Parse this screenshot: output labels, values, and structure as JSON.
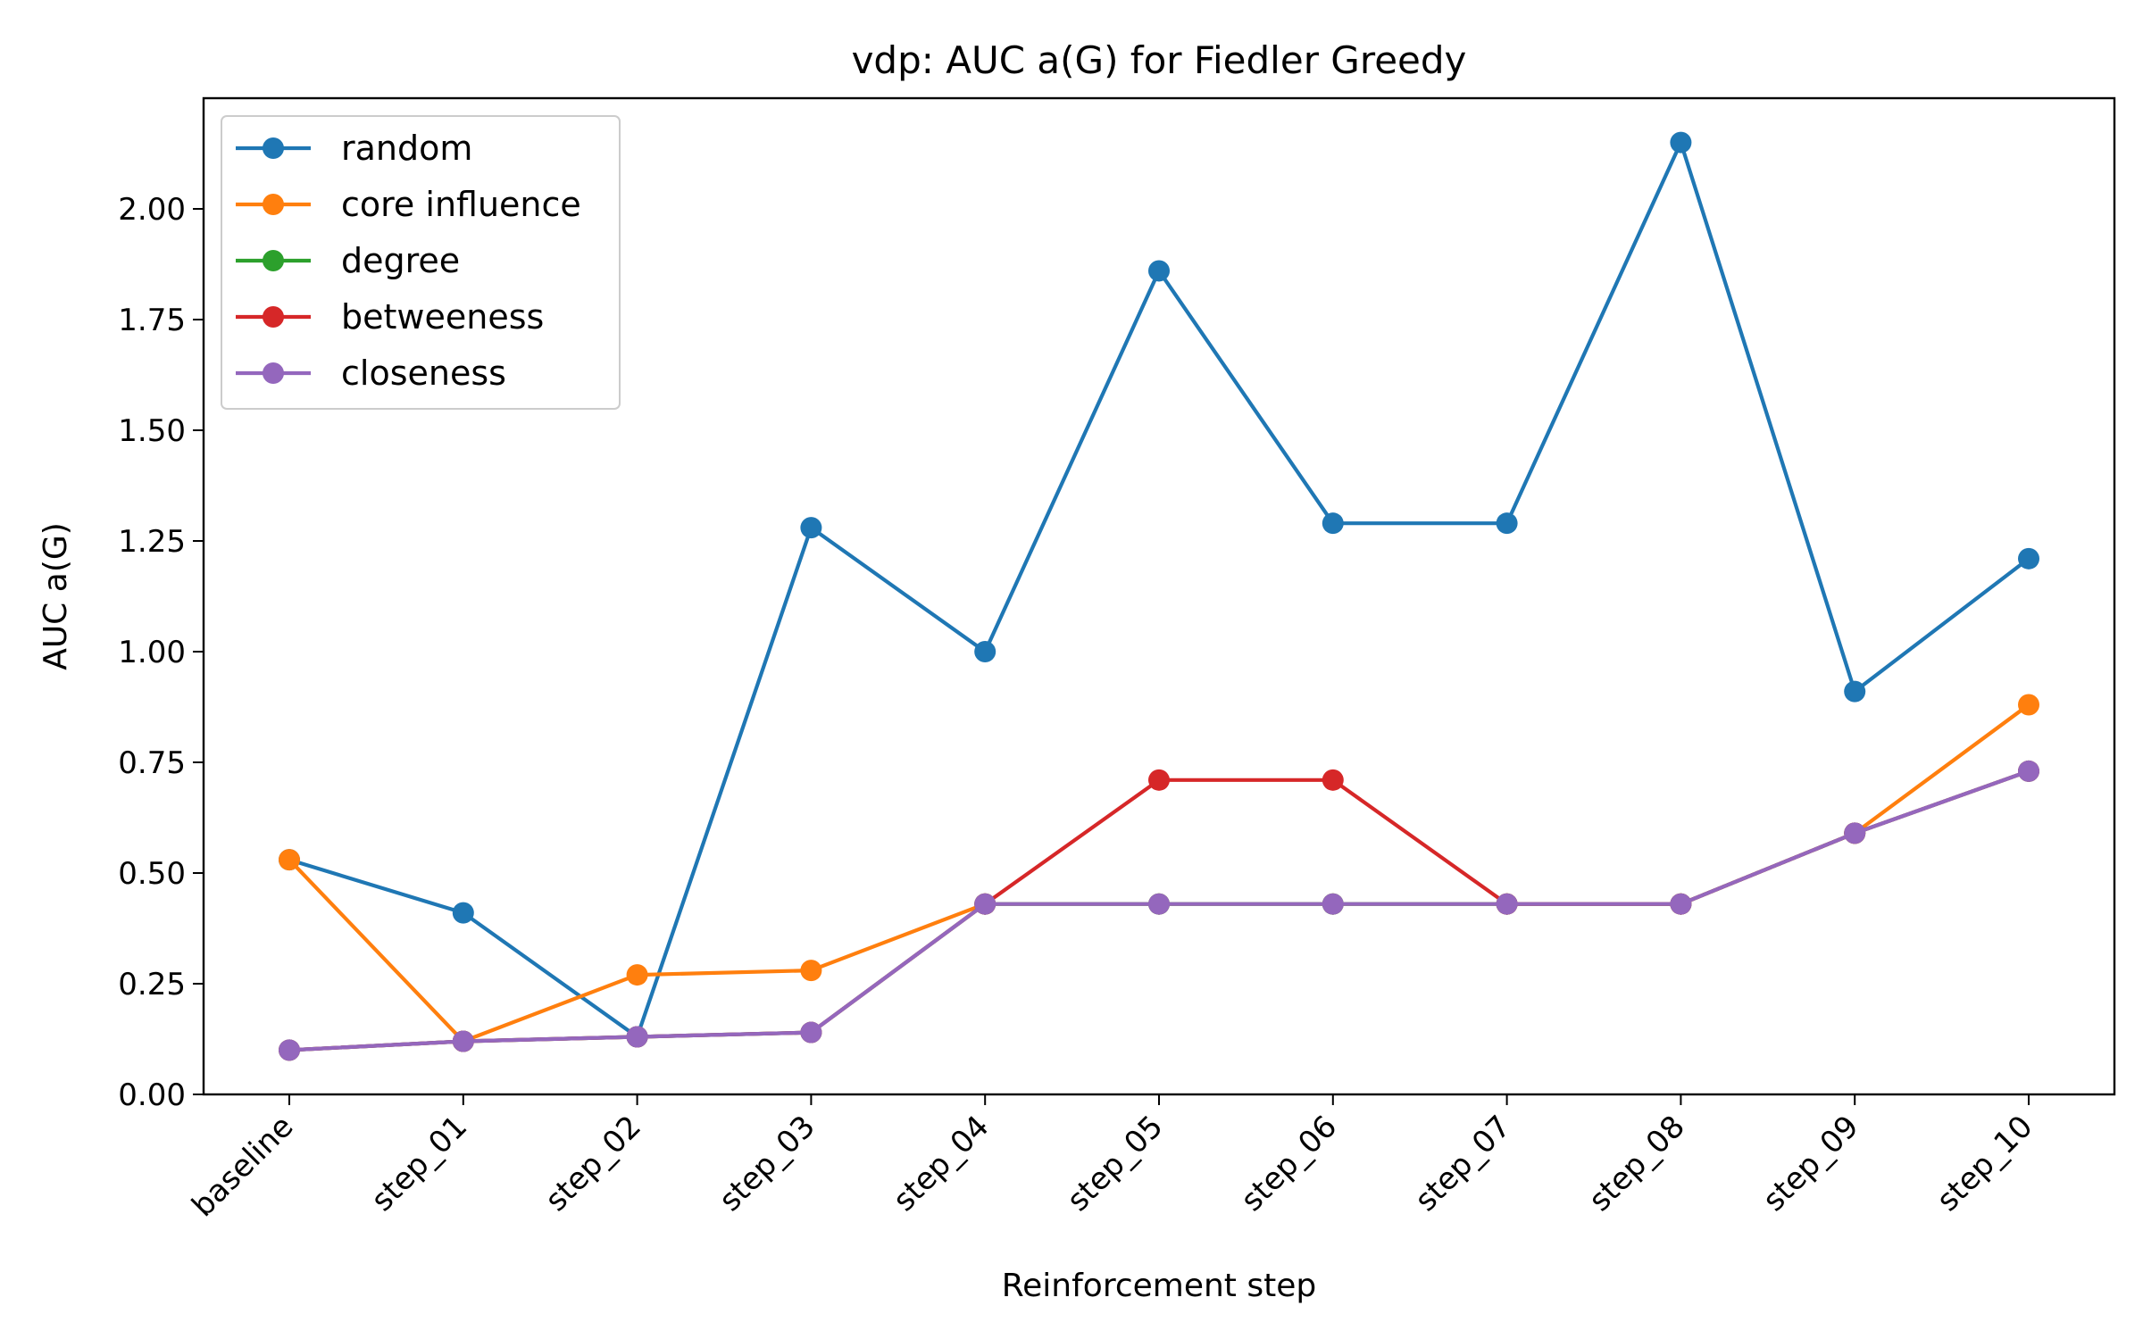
{
  "chart_data": {
    "type": "line",
    "title": "vdp: AUC a(G) for Fiedler Greedy",
    "xlabel": "Reinforcement step",
    "ylabel": "AUC a(G)",
    "categories": [
      "baseline",
      "step_01",
      "step_02",
      "step_03",
      "step_04",
      "step_05",
      "step_06",
      "step_07",
      "step_08",
      "step_09",
      "step_10"
    ],
    "ylim": [
      0,
      2.25
    ],
    "yticks": [
      "0.00",
      "0.25",
      "0.50",
      "0.75",
      "1.00",
      "1.25",
      "1.50",
      "1.75",
      "2.00"
    ],
    "grid": false,
    "legend_position": "upper-left",
    "series": [
      {
        "name": "random",
        "color": "#1f77b4",
        "values": [
          0.53,
          0.41,
          0.13,
          1.28,
          1.0,
          1.86,
          1.29,
          1.29,
          2.15,
          0.91,
          1.21
        ]
      },
      {
        "name": "core influence",
        "color": "#ff7f0e",
        "values": [
          0.53,
          0.12,
          0.27,
          0.28,
          0.43,
          0.43,
          0.43,
          0.43,
          0.43,
          0.59,
          0.88
        ]
      },
      {
        "name": "degree",
        "color": "#2ca02c",
        "values": [
          0.1,
          0.12,
          0.13,
          0.14,
          0.43,
          0.43,
          0.43,
          0.43,
          0.43,
          0.59,
          0.73
        ]
      },
      {
        "name": "betweeness",
        "color": "#d62728",
        "values": [
          0.1,
          0.12,
          0.13,
          0.14,
          0.43,
          0.71,
          0.71,
          0.43,
          0.43,
          0.59,
          0.73
        ]
      },
      {
        "name": "closeness",
        "color": "#9467bd",
        "values": [
          0.1,
          0.12,
          0.13,
          0.14,
          0.43,
          0.43,
          0.43,
          0.43,
          0.43,
          0.59,
          0.73
        ]
      }
    ]
  }
}
